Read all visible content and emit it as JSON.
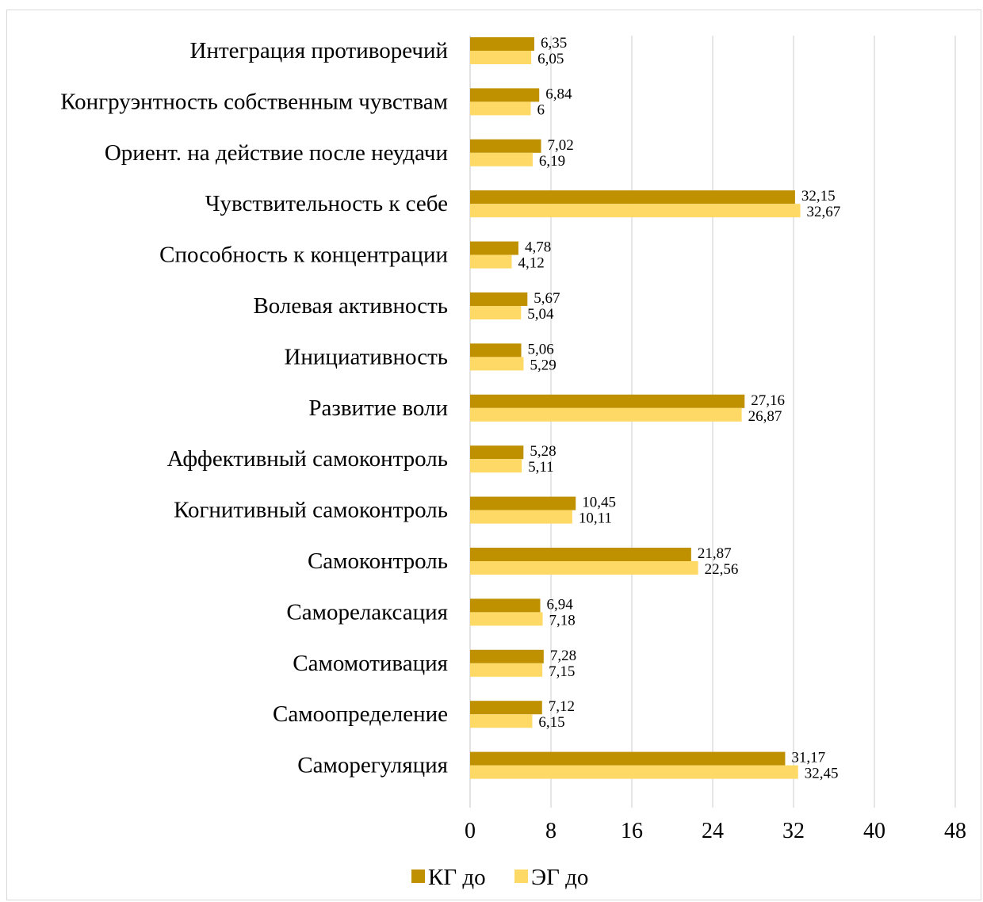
{
  "chart_data": {
    "type": "bar",
    "orientation": "horizontal",
    "categories": [
      "Интеграция противоречий",
      "Конгруэнтность собственным чувствам",
      "Ориент. на действие после неудачи",
      "Чувствительность к себе",
      "Способность к концентрации",
      "Волевая активность",
      "Инициативность",
      "Развитие воли",
      "Аффективный самоконтроль",
      "Когнитивный самоконтроль",
      "Самоконтроль",
      "Саморелаксация",
      "Самомотивация",
      "Самоопределение",
      "Саморегуляция"
    ],
    "series": [
      {
        "name": "КГ до",
        "color": "#bf9000",
        "values": [
          6.35,
          6.84,
          7.02,
          32.15,
          4.78,
          5.67,
          5.06,
          27.16,
          5.28,
          10.45,
          21.87,
          6.94,
          7.28,
          7.12,
          31.17
        ],
        "labels": [
          "6,35",
          "6,84",
          "7,02",
          "32,15",
          "4,78",
          "5,67",
          "5,06",
          "27,16",
          "5,28",
          "10,45",
          "21,87",
          "6,94",
          "7,28",
          "7,12",
          "31,17"
        ]
      },
      {
        "name": "ЭГ до",
        "color": "#ffd966",
        "values": [
          6.05,
          6,
          6.19,
          32.67,
          4.12,
          5.04,
          5.29,
          26.87,
          5.11,
          10.11,
          22.56,
          7.18,
          7.15,
          6.15,
          32.45
        ],
        "labels": [
          "6,05",
          "6",
          "6,19",
          "32,67",
          "4,12",
          "5,04",
          "5,29",
          "26,87",
          "5,11",
          "10,11",
          "22,56",
          "7,18",
          "7,15",
          "6,15",
          "32,45"
        ]
      }
    ],
    "xlim": [
      0,
      48
    ],
    "xticks": [
      "0",
      "8",
      "16",
      "24",
      "32",
      "40",
      "48"
    ],
    "grid": true,
    "legend_position": "bottom",
    "title": "",
    "xlabel": "",
    "ylabel": ""
  }
}
